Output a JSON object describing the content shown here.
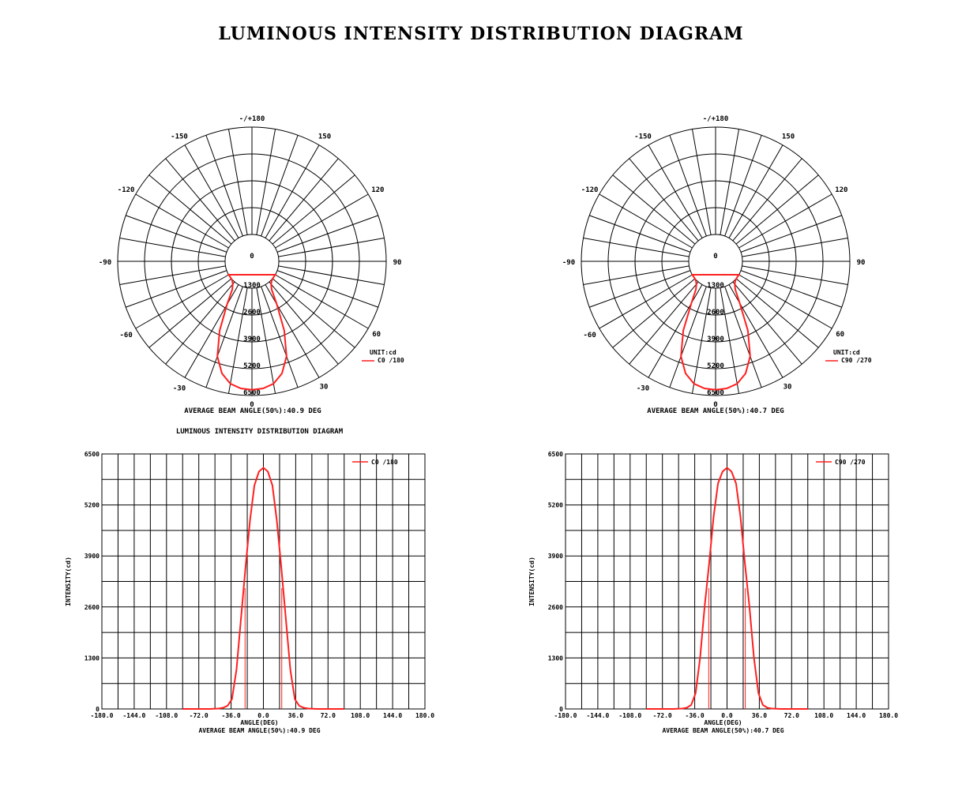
{
  "page": {
    "title": "LUMINOUS INTENSITY DISTRIBUTION DIAGRAM"
  },
  "colors": {
    "curve": "#ff1f1f",
    "grid": "#000000",
    "background": "#ffffff"
  },
  "chart_data": [
    {
      "type": "polar",
      "unit_label": "UNIT:cd",
      "legend": "C0  /180",
      "footer": "AVERAGE BEAM ANGLE(50%):40.9 DEG",
      "radial_ticks": [
        "1300",
        "2600",
        "3900",
        "5200",
        "6500"
      ],
      "r_max": 6500,
      "angle_labels": [
        "0",
        "30",
        "60",
        "90",
        "120",
        "150",
        "-/+180",
        "-150",
        "-120",
        "-90",
        "-60",
        "-30",
        "0"
      ],
      "series": [
        {
          "name": "C0  /180",
          "angles": [
            -60,
            -50,
            -45,
            -40,
            -35,
            -30,
            -25,
            -20,
            -15,
            -10,
            -5,
            0,
            5,
            10,
            15,
            20,
            25,
            30,
            35,
            40,
            45,
            50,
            60
          ],
          "values": [
            0,
            10,
            60,
            180,
            450,
            1400,
            3000,
            4500,
            5400,
            5900,
            6100,
            6150,
            6100,
            5900,
            5400,
            4500,
            3000,
            1400,
            450,
            180,
            60,
            10,
            0
          ]
        }
      ]
    },
    {
      "type": "polar",
      "unit_label": "UNIT:cd",
      "legend": "C90 /270",
      "footer": "AVERAGE BEAM ANGLE(50%):40.7 DEG",
      "radial_ticks": [
        "1300",
        "2600",
        "3900",
        "5200",
        "6500"
      ],
      "r_max": 6500,
      "angle_labels": [
        "0",
        "30",
        "60",
        "90",
        "120",
        "150",
        "-/+180",
        "-150",
        "-120",
        "-90",
        "-60",
        "-30",
        "0"
      ],
      "series": [
        {
          "name": "C90 /270",
          "angles": [
            -60,
            -50,
            -45,
            -40,
            -35,
            -30,
            -25,
            -20,
            -15,
            -10,
            -5,
            0,
            5,
            10,
            15,
            20,
            25,
            30,
            35,
            40,
            45,
            50,
            60
          ],
          "values": [
            0,
            10,
            60,
            180,
            450,
            1300,
            3000,
            4500,
            5400,
            5900,
            6100,
            6150,
            6100,
            5900,
            5400,
            4500,
            3000,
            1300,
            450,
            180,
            60,
            10,
            0
          ]
        }
      ]
    },
    {
      "type": "line",
      "title": "LUMINOUS INTENSITY DISTRIBUTION DIAGRAM",
      "xlabel": "ANGLE(DEG)",
      "ylabel": "INTENSITY(cd)",
      "footer": "AVERAGE BEAM ANGLE(50%):40.9 DEG",
      "xlim": [
        -180,
        180
      ],
      "ylim": [
        0,
        6500
      ],
      "x_ticks": [
        "-180.0",
        "-144.0",
        "-108.0",
        "-72.0",
        "-36.0",
        "0.0",
        "36.0",
        "72.0",
        "108.0",
        "144.0",
        "180.0"
      ],
      "y_ticks": [
        "0",
        "1300",
        "2600",
        "3900",
        "5200",
        "6500"
      ],
      "beam_half_angle": 20.45,
      "legend_position": "top-right",
      "grid": true,
      "series": [
        {
          "name": "C0  /180",
          "x": [
            -90,
            -60,
            -50,
            -45,
            -40,
            -35,
            -30,
            -25,
            -20,
            -15,
            -10,
            -5,
            0,
            5,
            10,
            15,
            20,
            25,
            30,
            35,
            40,
            45,
            50,
            60,
            90
          ],
          "y": [
            0,
            0,
            10,
            30,
            80,
            250,
            1000,
            2300,
            3600,
            4800,
            5700,
            6050,
            6150,
            6050,
            5700,
            4800,
            3600,
            2300,
            1000,
            250,
            80,
            30,
            10,
            0,
            0
          ]
        }
      ]
    },
    {
      "type": "line",
      "xlabel": "ANGLE(DEG)",
      "ylabel": "INTENSITY(cd)",
      "footer": "AVERAGE BEAM ANGLE(50%):40.7 DEG",
      "xlim": [
        -180,
        180
      ],
      "ylim": [
        0,
        6500
      ],
      "x_ticks": [
        "-180.0",
        "-144.0",
        "-108.0",
        "-72.0",
        "-36.0",
        "0.0",
        "36.0",
        "72.0",
        "108.0",
        "144.0",
        "180.0"
      ],
      "y_ticks": [
        "0",
        "1300",
        "2600",
        "3900",
        "5200",
        "6500"
      ],
      "beam_half_angle": 20.35,
      "legend_position": "top-right",
      "grid": true,
      "series": [
        {
          "name": "C90 /270",
          "x": [
            -90,
            -60,
            -50,
            -45,
            -40,
            -35,
            -30,
            -25,
            -20,
            -15,
            -10,
            -5,
            0,
            5,
            10,
            15,
            20,
            25,
            30,
            35,
            40,
            45,
            50,
            60,
            90
          ],
          "y": [
            0,
            0,
            10,
            30,
            100,
            400,
            1300,
            2600,
            3700,
            4900,
            5750,
            6050,
            6150,
            6050,
            5750,
            4900,
            3700,
            2600,
            1300,
            400,
            100,
            30,
            10,
            0,
            0
          ]
        }
      ]
    }
  ]
}
